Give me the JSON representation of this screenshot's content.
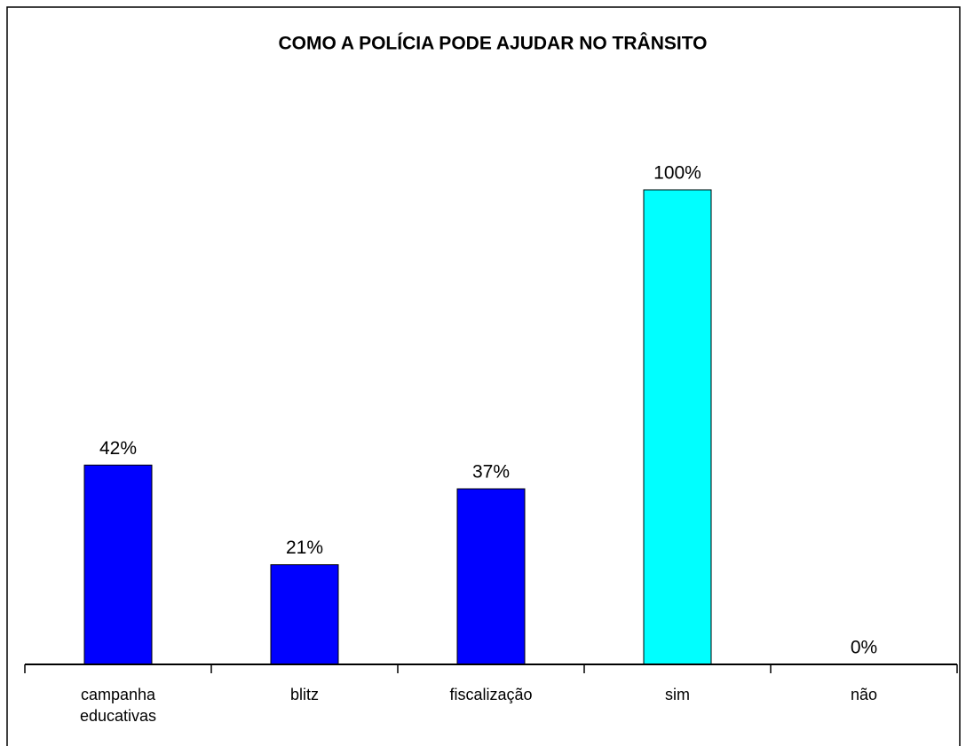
{
  "chart_data": {
    "type": "bar",
    "title": "COMO A POLÍCIA PODE AJUDAR NO TRÂNSITO",
    "categories": [
      "campanha educativas",
      "blitz",
      "fiscalização",
      "sim",
      "não"
    ],
    "values": [
      42,
      21,
      37,
      100,
      0
    ],
    "value_labels": [
      "42%",
      "21%",
      "37%",
      "100%",
      "0%"
    ],
    "colors": [
      "#0000ff",
      "#0000ff",
      "#0000ff",
      "#00ffff",
      "#0000ff"
    ],
    "ylim": [
      0,
      100
    ]
  }
}
